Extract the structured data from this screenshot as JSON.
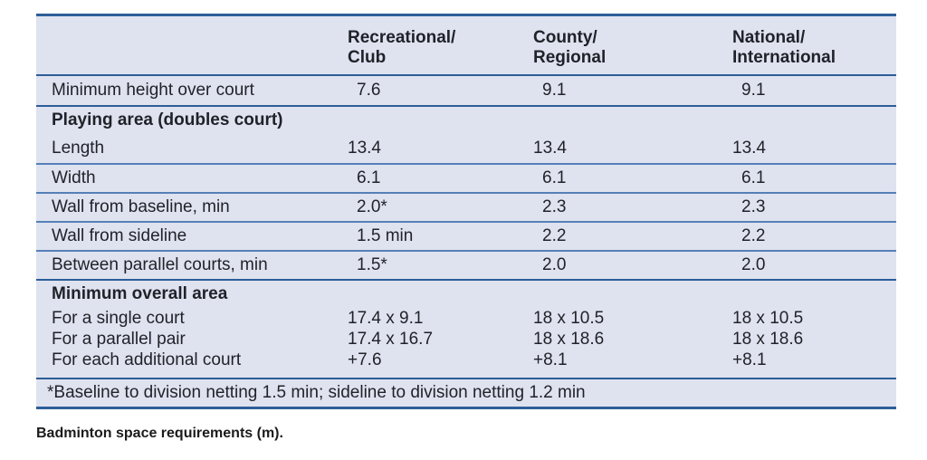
{
  "table": {
    "columns": [
      "",
      "Recreational/\nClub",
      "County/\nRegional",
      "National/\nInternational"
    ],
    "rows": [
      {
        "type": "data",
        "label": "Minimum height over court",
        "values": [
          "7.6",
          "9.1",
          "9.1"
        ],
        "divider": "none"
      },
      {
        "type": "section",
        "label": "Playing area (doubles court)",
        "divider": "strong"
      },
      {
        "type": "data",
        "label": "Length",
        "values": [
          "13.4",
          "13.4",
          "13.4"
        ],
        "divider": "none"
      },
      {
        "type": "data",
        "label": "Width",
        "values": [
          "6.1",
          "6.1",
          "6.1"
        ],
        "divider": "light"
      },
      {
        "type": "data",
        "label": "Wall from baseline, min",
        "values": [
          "2.0*",
          "2.3",
          "2.3"
        ],
        "divider": "light"
      },
      {
        "type": "data",
        "label": "Wall from sideline",
        "values": [
          "1.5 min",
          "2.2",
          "2.2"
        ],
        "divider": "light"
      },
      {
        "type": "data",
        "label": "Between parallel courts, min",
        "values": [
          "1.5*",
          "2.0",
          "2.0"
        ],
        "divider": "light"
      },
      {
        "type": "section",
        "label": "Minimum overall area",
        "divider": "strong"
      },
      {
        "type": "compact",
        "label": "For a single court",
        "values": [
          "17.4 x 9.1",
          "18 x 10.5",
          "18 x 10.5"
        ],
        "divider": "none"
      },
      {
        "type": "compact",
        "label": "For a parallel pair",
        "values": [
          "17.4 x 16.7",
          "18 x 18.6",
          "18 x 18.6"
        ],
        "divider": "none"
      },
      {
        "type": "compact",
        "label": "For each additional court",
        "values": [
          "+7.6",
          "+8.1",
          "+8.1"
        ],
        "divider": "none",
        "group_end": true
      },
      {
        "type": "footnote",
        "label": "*Baseline to division netting 1.5 min; sideline to division netting 1.2 min",
        "divider": "strong"
      }
    ],
    "caption": "Badminton space requirements (m)."
  },
  "colors": {
    "table_background": "#dfe2ef",
    "border_dark": "#2d5e99",
    "divider_light": "#5580b8",
    "divider_strong": "#2c5d98",
    "text": "#1f2228"
  }
}
